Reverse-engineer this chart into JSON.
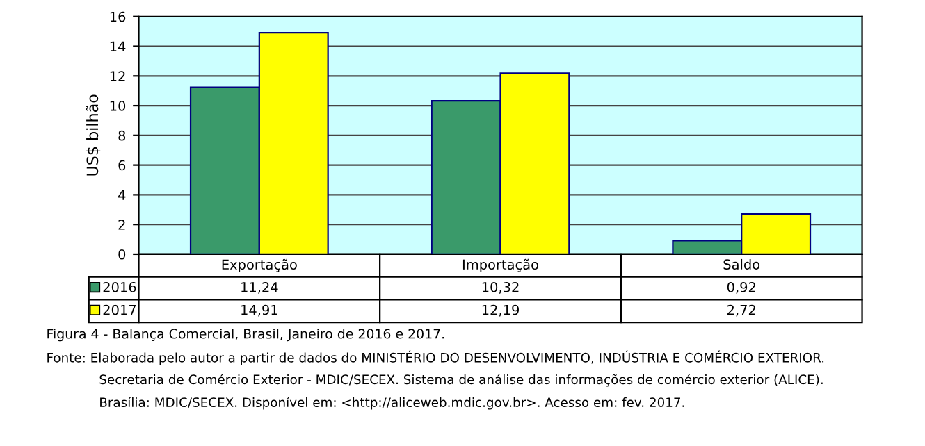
{
  "chart_data": {
    "type": "bar",
    "title": "Figura 4 - Balança Comercial, Brasil, Janeiro de 2016 e 2017.",
    "ylabel": "US$ bilhão",
    "categories": [
      "Exportação",
      "Importação",
      "Saldo"
    ],
    "series": [
      {
        "name": "2016",
        "color": "#3a9a6a",
        "values": [
          11.24,
          10.32,
          0.92
        ],
        "value_labels": [
          "11,24",
          "10,32",
          "0,92"
        ]
      },
      {
        "name": "2017",
        "color": "#ffff00",
        "values": [
          14.91,
          12.19,
          2.72
        ],
        "value_labels": [
          "14,91",
          "12,19",
          "2,72"
        ]
      }
    ],
    "ylim": [
      0,
      16
    ],
    "yticks": [
      0,
      2,
      4,
      6,
      8,
      10,
      12,
      14,
      16
    ],
    "grid": "y",
    "legend": "bottom left",
    "annotations": [
      "Fonte: Elaborada pelo autor a partir de dados do MINISTÉRIO DO DESENVOLVIMENTO, INDÚSTRIA E COMÉRCIO EXTERIOR.",
      "Secretaria de Comércio Exterior - MDIC/SECEX. Sistema de análise das informações de comércio exterior (ALICE).",
      "Brasília: MDIC/SECEX. Disponível em: <http://aliceweb.mdic.gov.br>. Acesso em: fev. 2017."
    ]
  }
}
